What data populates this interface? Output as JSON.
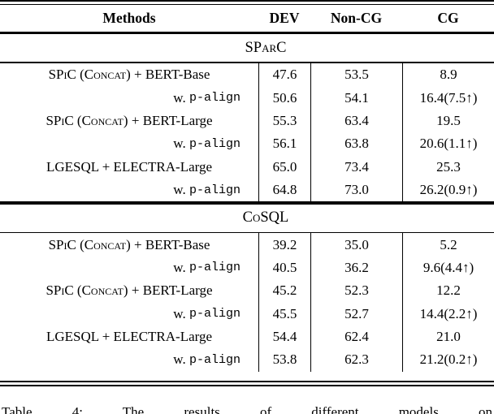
{
  "table": {
    "columns": [
      "Methods",
      "DEV",
      "Non-CG",
      "CG"
    ],
    "sections": [
      {
        "title": "SParC",
        "rows": [
          {
            "sub": false,
            "method": [
              {
                "t": "SPiC (Concat)",
                "s": "sc"
              },
              {
                "t": " + BERT-Base",
                "s": "r"
              }
            ],
            "dev": "47.6",
            "noncg": "53.5",
            "cg": "8.9"
          },
          {
            "sub": true,
            "method": [
              {
                "t": "w. ",
                "s": "r"
              },
              {
                "t": "p-align",
                "s": "m"
              }
            ],
            "dev": "50.6",
            "noncg": "54.1",
            "cg": "16.4(7.5↑)"
          },
          {
            "sub": false,
            "method": [
              {
                "t": "SPiC (Concat)",
                "s": "sc"
              },
              {
                "t": " + BERT-Large",
                "s": "r"
              }
            ],
            "dev": "55.3",
            "noncg": "63.4",
            "cg": "19.5"
          },
          {
            "sub": true,
            "method": [
              {
                "t": "w. ",
                "s": "r"
              },
              {
                "t": "p-align",
                "s": "m"
              }
            ],
            "dev": "56.1",
            "noncg": "63.8",
            "cg": "20.6(1.1↑)"
          },
          {
            "sub": false,
            "method": [
              {
                "t": "LGESQL + ELECTRA-Large",
                "s": "r"
              }
            ],
            "dev": "65.0",
            "noncg": "73.4",
            "cg": "25.3"
          },
          {
            "sub": true,
            "method": [
              {
                "t": "w. ",
                "s": "r"
              },
              {
                "t": "p-align",
                "s": "m"
              }
            ],
            "dev": "64.8",
            "noncg": "73.0",
            "cg": "26.2(0.9↑)"
          }
        ]
      },
      {
        "title": "CoSQL",
        "rows": [
          {
            "sub": false,
            "method": [
              {
                "t": "SPiC (Concat)",
                "s": "sc"
              },
              {
                "t": " + BERT-Base",
                "s": "r"
              }
            ],
            "dev": "39.2",
            "noncg": "35.0",
            "cg": "5.2"
          },
          {
            "sub": true,
            "method": [
              {
                "t": "w. ",
                "s": "r"
              },
              {
                "t": "p-align",
                "s": "m"
              }
            ],
            "dev": "40.5",
            "noncg": "36.2",
            "cg": "9.6(4.4↑)"
          },
          {
            "sub": false,
            "method": [
              {
                "t": "SPiC (Concat)",
                "s": "sc"
              },
              {
                "t": " + BERT-Large",
                "s": "r"
              }
            ],
            "dev": "45.2",
            "noncg": "52.3",
            "cg": "12.2"
          },
          {
            "sub": true,
            "method": [
              {
                "t": "w. ",
                "s": "r"
              },
              {
                "t": "p-align",
                "s": "m"
              }
            ],
            "dev": "45.5",
            "noncg": "52.7",
            "cg": "14.4(2.2↑)"
          },
          {
            "sub": false,
            "method": [
              {
                "t": "LGESQL + ELECTRA-Large",
                "s": "r"
              }
            ],
            "dev": "54.4",
            "noncg": "62.4",
            "cg": "21.0"
          },
          {
            "sub": true,
            "method": [
              {
                "t": "w. ",
                "s": "r"
              },
              {
                "t": "p-align",
                "s": "m"
              }
            ],
            "dev": "53.8",
            "noncg": "62.3",
            "cg": "21.2(0.2↑)"
          }
        ]
      }
    ]
  },
  "caption": {
    "text": "Table 4: The results of different models on"
  },
  "colors": {
    "text": "#000000",
    "background": "#ffffff",
    "rule": "#000000"
  }
}
